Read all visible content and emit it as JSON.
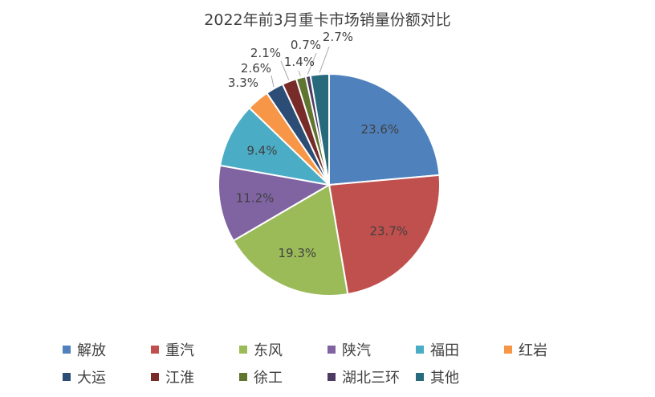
{
  "chart_data": {
    "type": "pie",
    "title": "2022年前3月重卡市场销量份额对比",
    "categories": [
      "解放",
      "重汽",
      "东风",
      "陕汽",
      "福田",
      "红岩",
      "大运",
      "江淮",
      "徐工",
      "湖北三环",
      "其他"
    ],
    "values": [
      23.6,
      23.7,
      19.3,
      11.2,
      9.4,
      3.3,
      2.6,
      2.1,
      1.4,
      0.7,
      2.7
    ],
    "labels": [
      "23.6%",
      "23.7%",
      "19.3%",
      "11.2%",
      "9.4%",
      "3.3%",
      "2.6%",
      "2.1%",
      "1.4%",
      "0.7%",
      "2.7%"
    ],
    "colors": [
      "#4F81BD",
      "#C0504D",
      "#9BBB59",
      "#8064A2",
      "#4BACC6",
      "#F79646",
      "#2C4D75",
      "#772C2A",
      "#5F7530",
      "#4D3B62",
      "#276A7C"
    ],
    "legend_position": "bottom"
  }
}
